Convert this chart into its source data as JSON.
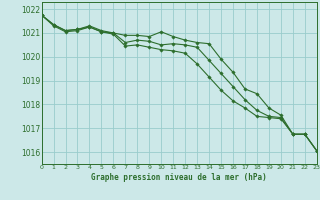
{
  "title": "Graphe pression niveau de la mer (hPa)",
  "background_color": "#cce8e8",
  "grid_color": "#99cccc",
  "line_color": "#2d6e2d",
  "marker_color": "#2d6e2d",
  "xlim": [
    0,
    23
  ],
  "ylim": [
    1015.5,
    1022.3
  ],
  "yticks": [
    1016,
    1017,
    1018,
    1019,
    1020,
    1021,
    1022
  ],
  "xticks": [
    0,
    1,
    2,
    3,
    4,
    5,
    6,
    7,
    8,
    9,
    10,
    11,
    12,
    13,
    14,
    15,
    16,
    17,
    18,
    19,
    20,
    21,
    22,
    23
  ],
  "series": [
    [
      1021.75,
      1021.35,
      1021.1,
      1021.15,
      1021.25,
      1021.05,
      1021.0,
      1020.9,
      1020.9,
      1020.85,
      1021.05,
      1020.85,
      1020.7,
      1020.6,
      1020.55,
      1019.9,
      1019.35,
      1018.65,
      1018.45,
      1017.85,
      1017.55,
      1016.75,
      1016.75,
      1016.05
    ],
    [
      1021.75,
      1021.35,
      1021.1,
      1021.15,
      1021.3,
      1021.1,
      1021.0,
      1020.6,
      1020.7,
      1020.65,
      1020.5,
      1020.55,
      1020.5,
      1020.4,
      1019.85,
      1019.3,
      1018.75,
      1018.2,
      1017.75,
      1017.5,
      1017.45,
      1016.75,
      1016.75,
      1016.05
    ],
    [
      1021.75,
      1021.3,
      1021.05,
      1021.1,
      1021.25,
      1021.05,
      1020.95,
      1020.45,
      1020.5,
      1020.4,
      1020.3,
      1020.25,
      1020.15,
      1019.7,
      1019.15,
      1018.6,
      1018.15,
      1017.85,
      1017.5,
      1017.45,
      1017.4,
      1016.75,
      1016.75,
      1016.05
    ]
  ]
}
